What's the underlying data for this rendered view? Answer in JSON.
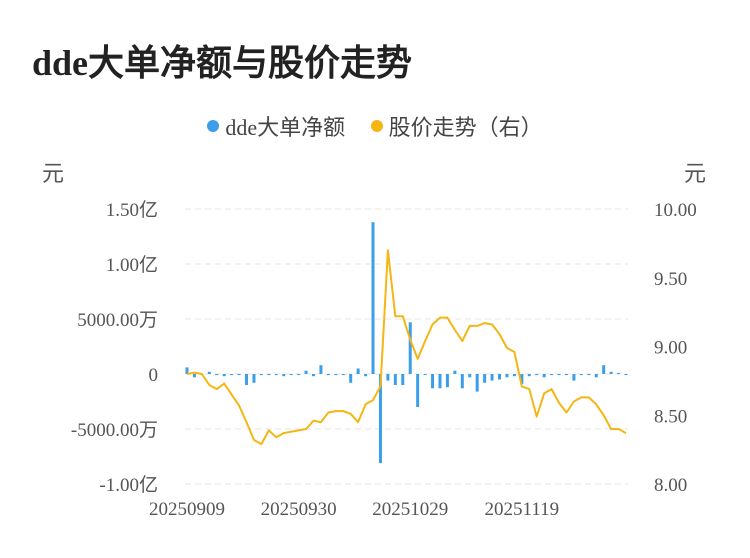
{
  "title": "dde大单净额与股价走势",
  "legend": [
    {
      "label": "dde大单净额",
      "color": "#3b9ee8"
    },
    {
      "label": "股价走势（右）",
      "color": "#f5b614"
    }
  ],
  "units": {
    "left": "元",
    "right": "元"
  },
  "chart_data": {
    "type": "bar+line",
    "left_axis": {
      "ticks": [
        "1.50亿",
        "1.00亿",
        "5000.00万",
        "0",
        "-5000.00万",
        "-1.00亿"
      ],
      "values": [
        150000000,
        100000000,
        50000000,
        0,
        -50000000,
        -100000000
      ],
      "range": [
        -100000000,
        150000000
      ]
    },
    "right_axis": {
      "ticks": [
        "10.00",
        "9.50",
        "9.00",
        "8.50",
        "8.00"
      ],
      "values": [
        10.0,
        9.5,
        9.0,
        8.5,
        8.0
      ],
      "range": [
        8.0,
        10.0
      ]
    },
    "x_ticks": [
      {
        "label": "20250909",
        "index": 0
      },
      {
        "label": "20250930",
        "index": 15
      },
      {
        "label": "20251029",
        "index": 30
      },
      {
        "label": "20251119",
        "index": 45
      }
    ],
    "series": [
      {
        "name": "dde大单净额",
        "type": "bar",
        "color": "#3b9ee8",
        "values": [
          6000000,
          -3000000,
          -1000000,
          2000000,
          -1000000,
          -2000000,
          -1000000,
          -1000000,
          -10000000,
          -8000000,
          -1000000,
          -1000000,
          -1000000,
          -2000000,
          -1000000,
          -1000000,
          3000000,
          -2000000,
          8000000,
          -1000000,
          -1000000,
          -1000000,
          -8000000,
          5000000,
          -2000000,
          138000000,
          -81000000,
          -6000000,
          -10000000,
          -10000000,
          47000000,
          -30000000,
          -1000000,
          -13000000,
          -13000000,
          -12000000,
          3000000,
          -13000000,
          -3000000,
          -16000000,
          -8000000,
          -6000000,
          -5000000,
          -3000000,
          -2000000,
          -9000000,
          -2000000,
          -1000000,
          -3000000,
          -1000000,
          -1000000,
          -1000000,
          -6000000,
          -1000000,
          -1000000,
          -3000000,
          8000000,
          2000000,
          1000000,
          -1000000
        ]
      },
      {
        "name": "股价走势（右）",
        "type": "line",
        "color": "#f5b614",
        "values": [
          8.8,
          8.81,
          8.8,
          8.72,
          8.69,
          8.73,
          8.65,
          8.57,
          8.45,
          8.32,
          8.29,
          8.39,
          8.34,
          8.37,
          8.38,
          8.39,
          8.4,
          8.46,
          8.45,
          8.52,
          8.53,
          8.53,
          8.51,
          8.45,
          8.58,
          8.61,
          8.71,
          9.7,
          9.22,
          9.22,
          9.05,
          8.91,
          9.04,
          9.16,
          9.21,
          9.21,
          9.12,
          9.04,
          9.15,
          9.15,
          9.17,
          9.16,
          9.09,
          8.99,
          8.96,
          8.71,
          8.69,
          8.49,
          8.66,
          8.69,
          8.59,
          8.52,
          8.6,
          8.63,
          8.63,
          8.58,
          8.5,
          8.4,
          8.4,
          8.37
        ]
      }
    ],
    "grid": true
  }
}
